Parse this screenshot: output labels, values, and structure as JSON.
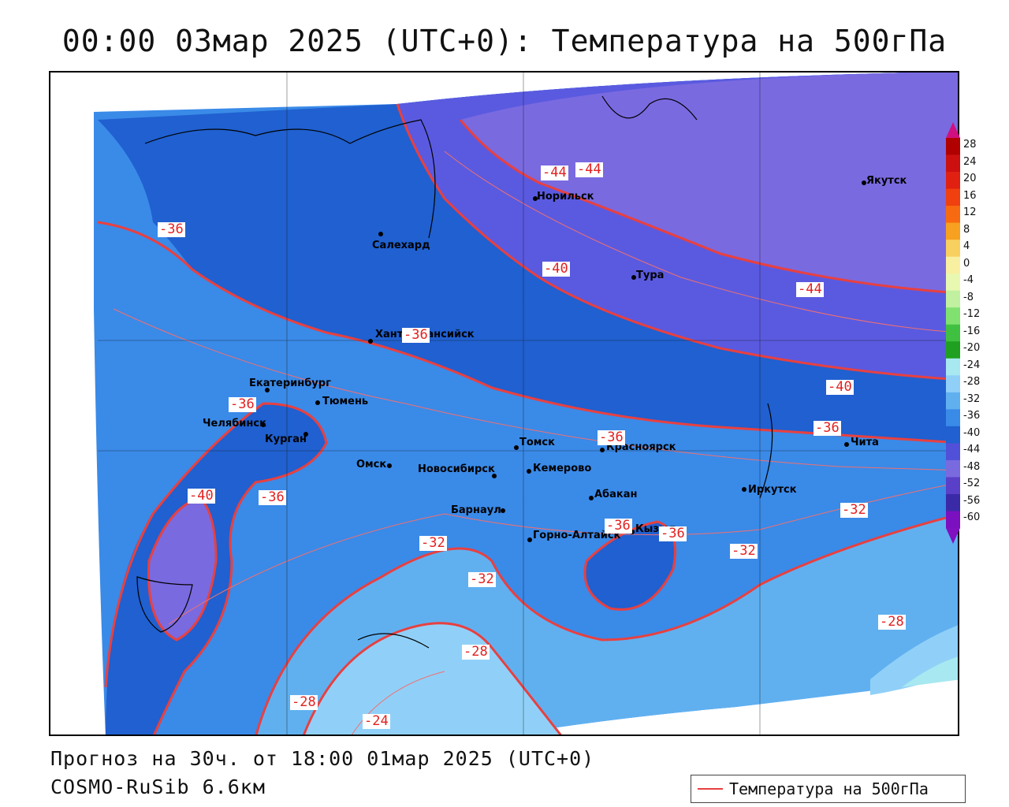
{
  "title": "00:00 03мар 2025 (UTC+0): Температура на 500гПа",
  "footer": {
    "forecast": "Прогноз на 30ч. от 18:00 01мар 2025 (UTC+0)",
    "model": "COSMO-RuSib 6.6км"
  },
  "legend": {
    "label": "Температура на 500гПа",
    "color": "#e84040"
  },
  "colorbar": {
    "ticks": [
      "28",
      "24",
      "20",
      "16",
      "12",
      "8",
      "4",
      "0",
      "-4",
      "-8",
      "-12",
      "-16",
      "-20",
      "-24",
      "-28",
      "-32",
      "-36",
      "-40",
      "-44",
      "-48",
      "-52",
      "-56",
      "-60"
    ],
    "colors": [
      "#b00000",
      "#cc1010",
      "#e02010",
      "#f04010",
      "#f86a10",
      "#f8a020",
      "#f8d060",
      "#f8f0a0",
      "#e8f8b0",
      "#c0f0a0",
      "#80e070",
      "#40c040",
      "#20a020",
      "#a8e8f0",
      "#90d0f8",
      "#60b0f0",
      "#3a8ae8",
      "#2060d0",
      "#5050d8",
      "#7a6ae0",
      "#5a40c8",
      "#3a2aa8",
      "#7a10c0"
    ]
  },
  "cities": [
    {
      "name": "Норильск"
    },
    {
      "name": "Якутск"
    },
    {
      "name": "Салехард"
    },
    {
      "name": "Тура"
    },
    {
      "name": "Ханты-Мансийск"
    },
    {
      "name": "Екатеринбург"
    },
    {
      "name": "Тюмень"
    },
    {
      "name": "Челябинск"
    },
    {
      "name": "Курган"
    },
    {
      "name": "Омск"
    },
    {
      "name": "Томск"
    },
    {
      "name": "Красноярск"
    },
    {
      "name": "Новосибирск"
    },
    {
      "name": "Кемерово"
    },
    {
      "name": "Абакан"
    },
    {
      "name": "Барнаул"
    },
    {
      "name": "Иркутск"
    },
    {
      "name": "Чита"
    },
    {
      "name": "Кызыл"
    },
    {
      "name": "Горно-Алтайск"
    }
  ],
  "contour_labels": [
    "-44",
    "-44",
    "-36",
    "-40",
    "-44",
    "-36",
    "-40",
    "-36",
    "-36",
    "-36",
    "-40",
    "-36",
    "-32",
    "-32",
    "-36",
    "-36",
    "-32",
    "-32",
    "-28",
    "-28",
    "-28",
    "-24"
  ]
}
